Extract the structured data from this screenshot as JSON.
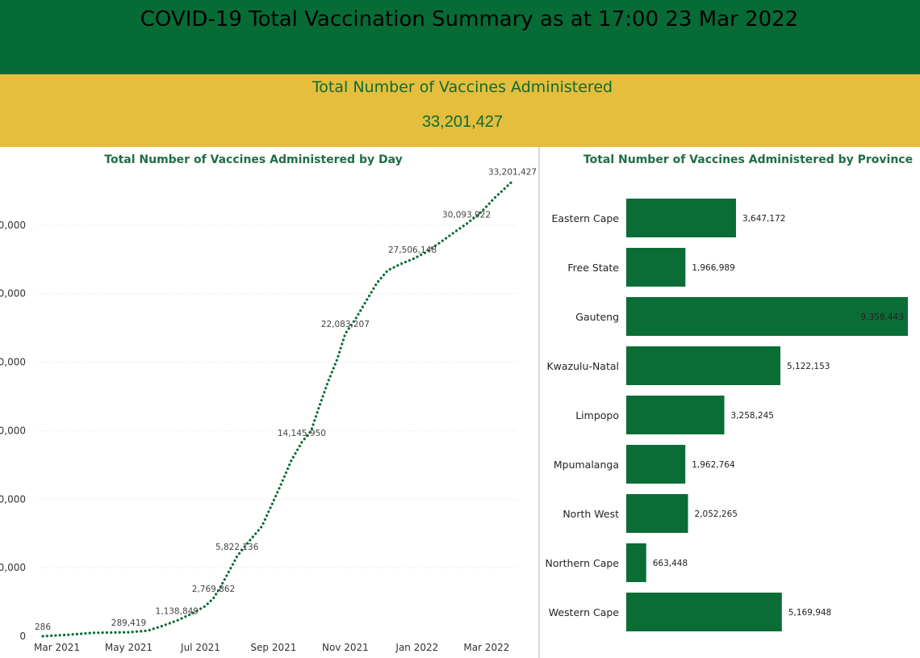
{
  "header": {
    "title": "COVID-19 Total Vaccination Summary as at 17:00 23 Mar 2022"
  },
  "kpi": {
    "title": "Total Number of Vaccines Administered",
    "value": "33,201,427"
  },
  "colors": {
    "header_bg": "#076b35",
    "kpi_bg": "#e4be3c",
    "series": "#0b6d36",
    "text_green": "#0e6a34"
  },
  "chart_data": [
    {
      "type": "line",
      "title": "Total Number of Vaccines Administered by Day",
      "xlabel": "",
      "ylabel": "",
      "x_ticks": [
        "Mar 2021",
        "May 2021",
        "Jul 2021",
        "Sep 2021",
        "Nov 2021",
        "Jan 2022",
        "Mar 2022"
      ],
      "y_ticks": [
        "0",
        "0,000",
        "0,000",
        "0,000",
        "0,000",
        "0,000",
        "0,000"
      ],
      "xlim": [
        "2021-02-17",
        "2022-03-23"
      ],
      "ylim": [
        0,
        35000000
      ],
      "grid": true,
      "line_style": "dotted",
      "series": [
        {
          "name": "",
          "points": [
            [
              "2021-02-17",
              286
            ],
            [
              "2021-03-10",
              100000
            ],
            [
              "2021-04-01",
              250000
            ],
            [
              "2021-05-01",
              289419
            ],
            [
              "2021-05-17",
              400000
            ],
            [
              "2021-05-28",
              700000
            ],
            [
              "2021-06-11",
              1138849
            ],
            [
              "2021-06-25",
              1700000
            ],
            [
              "2021-07-05",
              2200000
            ],
            [
              "2021-07-12",
              2769862
            ],
            [
              "2021-07-18",
              3600000
            ],
            [
              "2021-07-25",
              4700000
            ],
            [
              "2021-08-01",
              5822136
            ],
            [
              "2021-08-10",
              6800000
            ],
            [
              "2021-08-22",
              8000000
            ],
            [
              "2021-08-29",
              9300000
            ],
            [
              "2021-09-07",
              11000000
            ],
            [
              "2021-09-16",
              12800000
            ],
            [
              "2021-09-25",
              14145950
            ],
            [
              "2021-10-03",
              15000000
            ],
            [
              "2021-10-10",
              16800000
            ],
            [
              "2021-10-17",
              18500000
            ],
            [
              "2021-10-25",
              20200000
            ],
            [
              "2021-11-01",
              22083207
            ],
            [
              "2021-11-10",
              23200000
            ],
            [
              "2021-11-19",
              24500000
            ],
            [
              "2021-11-28",
              25800000
            ],
            [
              "2021-12-07",
              26700000
            ],
            [
              "2021-12-19",
              27200000
            ],
            [
              "2021-12-28",
              27506148
            ],
            [
              "2022-01-08",
              28000000
            ],
            [
              "2022-01-20",
              28700000
            ],
            [
              "2022-02-02",
              29500000
            ],
            [
              "2022-02-12",
              30093922
            ],
            [
              "2022-02-25",
              31000000
            ],
            [
              "2022-03-08",
              32000000
            ],
            [
              "2022-03-23",
              33201427
            ]
          ]
        }
      ],
      "data_labels": [
        {
          "date": "2021-02-17",
          "value": 286,
          "text": "286"
        },
        {
          "date": "2021-05-01",
          "value": 289419,
          "text": "289,419"
        },
        {
          "date": "2021-06-11",
          "value": 1138849,
          "text": "1,138,849"
        },
        {
          "date": "2021-07-12",
          "value": 2769862,
          "text": "2,769,862"
        },
        {
          "date": "2021-08-01",
          "value": 5822136,
          "text": "5,822,136"
        },
        {
          "date": "2021-09-25",
          "value": 14145950,
          "text": "14,145,950"
        },
        {
          "date": "2021-11-01",
          "value": 22083207,
          "text": "22,083,207"
        },
        {
          "date": "2021-12-28",
          "value": 27506148,
          "text": "27,506,148"
        },
        {
          "date": "2022-02-12",
          "value": 30093922,
          "text": "30,093,922"
        },
        {
          "date": "2022-03-23",
          "value": 33201427,
          "text": "33,201,427"
        }
      ]
    },
    {
      "type": "bar",
      "orientation": "horizontal",
      "title": "Total Number of Vaccines Administered by Province",
      "categories": [
        "Eastern Cape",
        "Free State",
        "Gauteng",
        "Kwazulu-Natal",
        "Limpopo",
        "Mpumalanga",
        "North West",
        "Northern Cape",
        "Western Cape"
      ],
      "values": [
        3647172,
        1966989,
        9358443,
        5122153,
        3258245,
        1962764,
        2052265,
        663448,
        5169948
      ],
      "value_labels": [
        "3,647,172",
        "1,966,989",
        "9,358,443",
        "5,122,153",
        "3,258,245",
        "1,962,764",
        "2,052,265",
        "663,448",
        "5,169,948"
      ],
      "xlim": [
        0,
        9358443
      ]
    }
  ]
}
